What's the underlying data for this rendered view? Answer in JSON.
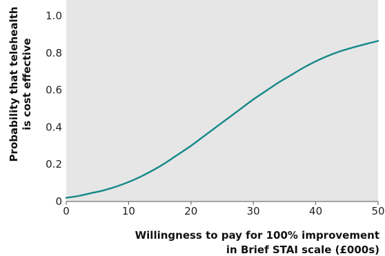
{
  "chart_data": {
    "type": "line",
    "title": "",
    "xlabel_lines": [
      "Willingness to pay for 100% improvement",
      "in Brief STAI scale (£000s)"
    ],
    "ylabel_lines": [
      "Probability that telehealth",
      "is cost effective"
    ],
    "xlim": [
      0,
      50
    ],
    "ylim": [
      0,
      1.0
    ],
    "x_ticks": [
      0,
      10,
      20,
      30,
      40,
      50
    ],
    "x_tick_labels": [
      "0",
      "10",
      "20",
      "30",
      "40",
      "50"
    ],
    "y_ticks": [
      0,
      0.2,
      0.4,
      0.6,
      0.8,
      1.0
    ],
    "y_tick_labels": [
      "0",
      "0.2",
      "0.4",
      "0.6",
      "0.8",
      "1.0"
    ],
    "grid": false,
    "plot_background": "#e6e6e6",
    "series": [
      {
        "color": "#1a8a8a",
        "x": [
          0,
          2,
          4,
          6,
          8,
          10,
          12,
          14,
          16,
          18,
          20,
          22,
          24,
          26,
          28,
          30,
          32,
          34,
          36,
          38,
          40,
          42,
          44,
          46,
          48,
          50
        ],
        "y": [
          0.02,
          0.03,
          0.045,
          0.06,
          0.08,
          0.105,
          0.135,
          0.17,
          0.21,
          0.255,
          0.3,
          0.35,
          0.4,
          0.45,
          0.5,
          0.55,
          0.595,
          0.64,
          0.68,
          0.72,
          0.755,
          0.785,
          0.81,
          0.83,
          0.848,
          0.865
        ]
      }
    ]
  }
}
